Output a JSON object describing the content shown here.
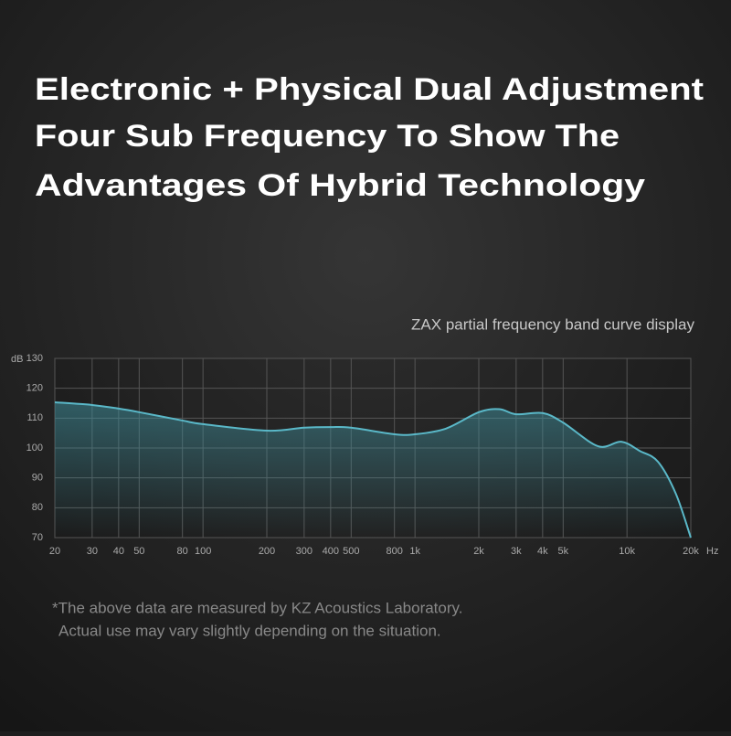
{
  "chart_data": {
    "type": "line",
    "title_lines": [
      "Electronic + Physical Dual Adjustment",
      "Four Sub Frequency To Show The",
      "Advantages Of Hybrid Technology"
    ],
    "subtitle": "ZAX partial frequency band curve display",
    "x_unit": "Hz",
    "y_unit": "dB",
    "xscale": "log",
    "grid": true,
    "xlim": [
      20,
      20000
    ],
    "ylim": [
      70,
      130
    ],
    "xticks": [
      20,
      30,
      40,
      50,
      80,
      100,
      200,
      300,
      400,
      500,
      800,
      {
        "value": 1000,
        "label": "1k"
      },
      {
        "value": 2000,
        "label": "2k"
      },
      {
        "value": 3000,
        "label": "3k"
      },
      {
        "value": 4000,
        "label": "4k"
      },
      {
        "value": 5000,
        "label": "5k"
      },
      {
        "value": 10000,
        "label": "10k"
      },
      {
        "value": 20000,
        "label": "20k"
      }
    ],
    "yticks": [
      70,
      80,
      90,
      100,
      110,
      120,
      130
    ],
    "x": [
      20,
      30,
      40,
      50,
      80,
      100,
      200,
      300,
      400,
      500,
      800,
      1000,
      1400,
      2000,
      2500,
      3000,
      4000,
      5000,
      7300,
      9400,
      11500,
      14000,
      17000,
      20000
    ],
    "series": [
      {
        "color": "#5ab8c8",
        "values": [
          115.3,
          114.4,
          113.2,
          112,
          109.2,
          108,
          105.8,
          106.8,
          107,
          106.8,
          104.6,
          104.6,
          106.5,
          112,
          113,
          111.3,
          111.7,
          108.5,
          100.6,
          102.1,
          99,
          95.4,
          84.7,
          70
        ]
      }
    ],
    "footnote_lines": [
      "*The above data are measured by KZ Acoustics Laboratory.",
      "Actual use may vary slightly depending on the situation."
    ]
  }
}
